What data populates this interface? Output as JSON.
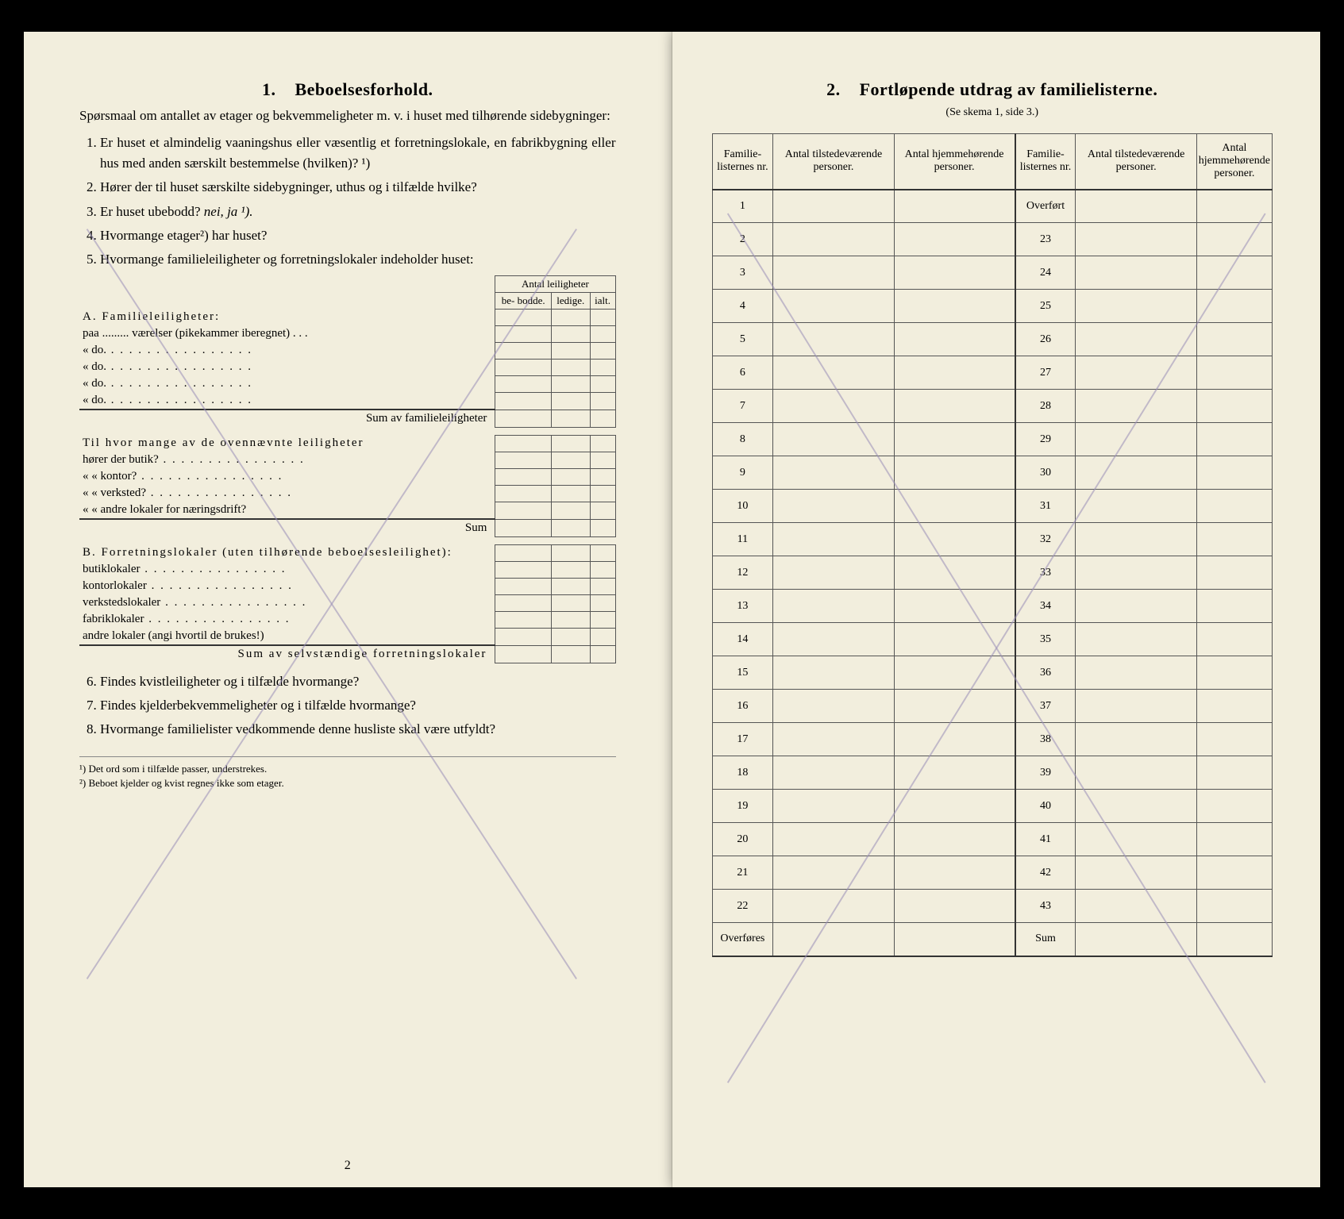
{
  "left": {
    "section_number": "1.",
    "section_title": "Beboelsesforhold.",
    "intro": "Spørsmaal om antallet av etager og bekvemmeligheter m. v. i huset med tilhørende sidebygninger:",
    "questions": {
      "q1": "Er huset et almindelig vaaningshus eller væsentlig et forretningslokale, en fabrikbygning eller hus med anden særskilt bestemmelse (hvilken)? ¹)",
      "q2": "Hører der til huset særskilte sidebygninger, uthus og i tilfælde hvilke?",
      "q3_prefix": "Er huset ubebodd?",
      "q3_nei": "nei,",
      "q3_ja": "ja ¹).",
      "q4": "Hvormange etager²) har huset?",
      "q5": "Hvormange familieleiligheter og forretningslokaler indeholder huset:",
      "q6": "Findes kvistleiligheter og i tilfælde hvormange?",
      "q7": "Findes kjelderbekvemmeligheter og i tilfælde hvormange?",
      "q8": "Hvormange familielister vedkommende denne husliste skal være utfyldt?"
    },
    "mini": {
      "header_span": "Antal leiligheter",
      "col_be": "be-\nbodde.",
      "col_ledige": "ledige.",
      "col_ialt": "ialt.",
      "a_heading": "A. Familieleiligheter:",
      "a_row1": "paa ......... værelser (pikekammer iberegnet) . . .",
      "a_do": "«             do.",
      "a_sum": "Sum av familieleiligheter",
      "til_intro": "Til hvor mange av de ovennævnte leiligheter",
      "til_butik": "hører der butik?",
      "til_kontor": "«    « kontor?",
      "til_verksted": "«    « verksted?",
      "til_andre": "«    « andre lokaler for næringsdrift?",
      "til_sum": "Sum",
      "b_heading": "B. Forretningslokaler (uten tilhørende beboelsesleilighet):",
      "b_butik": "butiklokaler",
      "b_kontor": "kontorlokaler",
      "b_verksted": "verkstedslokaler",
      "b_fabrik": "fabriklokaler",
      "b_andre": "andre lokaler (angi hvortil de brukes!)",
      "b_sum": "Sum av selvstændige forretningslokaler"
    },
    "footnote1": "¹) Det ord som i tilfælde passer, understrekes.",
    "footnote2": "²) Beboet kjelder og kvist regnes ikke som etager.",
    "page_num": "2"
  },
  "right": {
    "section_number": "2.",
    "section_title": "Fortløpende utdrag av familielisterne.",
    "subtitle": "(Se skema 1, side 3.)",
    "cols": {
      "c1": "Familie-\nlisternes\nnr.",
      "c2": "Antal\ntilstedeværende\npersoner.",
      "c3": "Antal\nhjemmehørende\npersoner.",
      "c4": "Familie-\nlisternes\nnr.",
      "c5": "Antal\ntilstedeværende\npersoner.",
      "c6": "Antal\nhjemmehørende\npersoner."
    },
    "row_start_right": "Overført",
    "left_nums": [
      "1",
      "2",
      "3",
      "4",
      "5",
      "6",
      "7",
      "8",
      "9",
      "10",
      "11",
      "12",
      "13",
      "14",
      "15",
      "16",
      "17",
      "18",
      "19",
      "20",
      "21",
      "22"
    ],
    "right_nums": [
      "23",
      "24",
      "25",
      "26",
      "27",
      "28",
      "29",
      "30",
      "31",
      "32",
      "33",
      "34",
      "35",
      "36",
      "37",
      "38",
      "39",
      "40",
      "41",
      "42",
      "43"
    ],
    "left_last": "Overføres",
    "right_last": "Sum"
  },
  "style": {
    "page_bg": "#f2eedd",
    "outer_bg": "#000000",
    "cross_stroke": "#9a8fb8",
    "text_color": "#222222",
    "border_color": "#555555"
  }
}
